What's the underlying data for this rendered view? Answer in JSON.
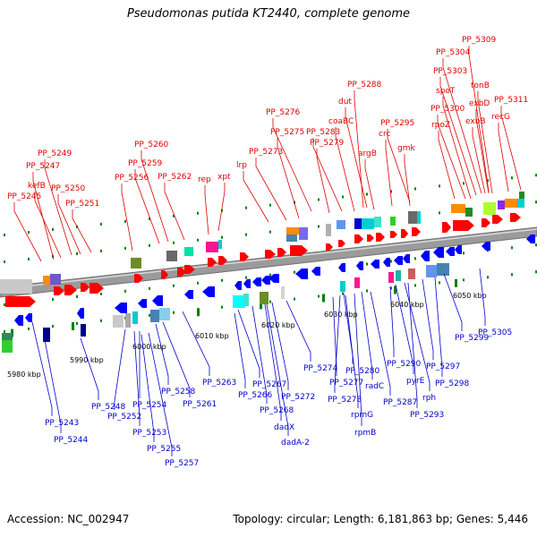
{
  "title": "Pseudomonas putida KT2440, complete genome",
  "footer": {
    "accession": "Accession: NC_002947",
    "summary": "Topology: circular; Length: 6,181,863 bp; Genes: 5,446"
  },
  "colors": {
    "upper_label": "#e00000",
    "lower_label": "#0000cc",
    "backbone": "#8a8a8a",
    "tick": "#008000"
  },
  "kbp_labels": [
    "5980 kbp",
    "5990 kbp",
    "6000 kbp",
    "6010 kbp",
    "6020 kbp",
    "6030 kbp",
    "6040 kbp",
    "6050 kbp"
  ],
  "upper_genes": [
    "PP_5245",
    "PP_5247",
    "kefB",
    "PP_5249",
    "PP_5250",
    "PP_5251",
    "PP_5256",
    "PP_5259",
    "PP_5260",
    "PP_5262",
    "rep",
    "xpt",
    "lrp",
    "PP_5273",
    "PP_5275",
    "PP_5276",
    "PP_5279",
    "PP_5283",
    "coaBC",
    "PP_5288",
    "dut",
    "argB",
    "crc",
    "PP_5295",
    "gmk",
    "rpoZ",
    "PP_5300",
    "spoT",
    "PP_5303",
    "PP_5304",
    "PP_5309",
    "tonB",
    "exbD",
    "exbB",
    "recG",
    "PP_5311"
  ],
  "lower_genes": [
    "PP_5243",
    "PP_5244",
    "PP_5248",
    "PP_5252",
    "PP_5253",
    "PP_5254",
    "PP_5255",
    "PP_5257",
    "PP_5258",
    "PP_5261",
    "PP_5263",
    "PP_5266",
    "PP_5267",
    "PP_5268",
    "dadX",
    "dadA-2",
    "PP_5272",
    "PP_5274",
    "PP_5277",
    "PP_5278",
    "PP_5280",
    "rpmG",
    "rpmB",
    "radC",
    "PP_5287",
    "PP_5290",
    "pyrE",
    "rph",
    "PP_5293",
    "PP_5297",
    "PP_5298",
    "PP_5299",
    "PP_5305"
  ]
}
